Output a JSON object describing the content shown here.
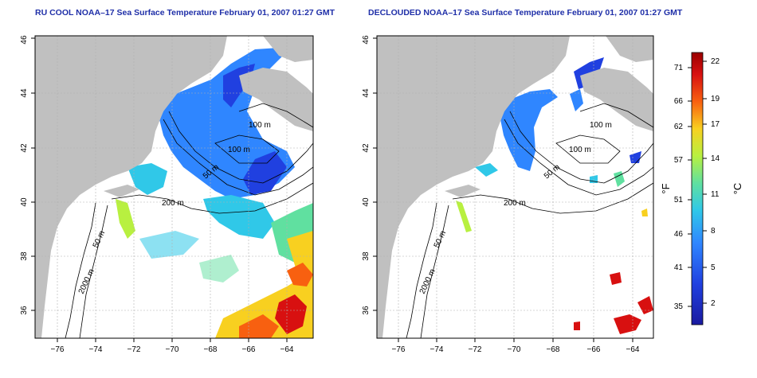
{
  "titles": {
    "left": "RU COOL NOAA–17 Sea Surface Temperature February 01, 2007 01:27 GMT",
    "right": "DECLOUDED NOAA–17 Sea Surface Temperature February 01, 2007 01:27 GMT"
  },
  "axes": {
    "x_ticks": [
      "−76",
      "−74",
      "−72",
      "−70",
      "−68",
      "−66",
      "−64"
    ],
    "y_ticks": [
      "36",
      "38",
      "40",
      "42",
      "44",
      "46"
    ]
  },
  "contours": {
    "left": [
      "100 m",
      "100 m",
      "50 m",
      "200 m",
      "50 m",
      "2000 m"
    ],
    "right": [
      "100 m",
      "100 m",
      "50 m",
      "200 m",
      "50 m",
      "2000 m"
    ]
  },
  "colorbar": {
    "fahrenheit_ticks": [
      "71",
      "66",
      "62",
      "57",
      "51",
      "46",
      "41",
      "35"
    ],
    "celsius_ticks": [
      "22",
      "19",
      "17",
      "14",
      "11",
      "8",
      "5",
      "2"
    ],
    "unit_f": "°F",
    "unit_c": "°C",
    "colors": [
      "#1a1aa0",
      "#2040e0",
      "#2f86ff",
      "#30c8e8",
      "#60e0a0",
      "#b8f040",
      "#f8d020",
      "#f86010",
      "#d81010",
      "#9a0000"
    ]
  },
  "colors": {
    "land": "#c0c0c0",
    "title": "#1f2fa8",
    "grid": "#b0b0b0"
  }
}
